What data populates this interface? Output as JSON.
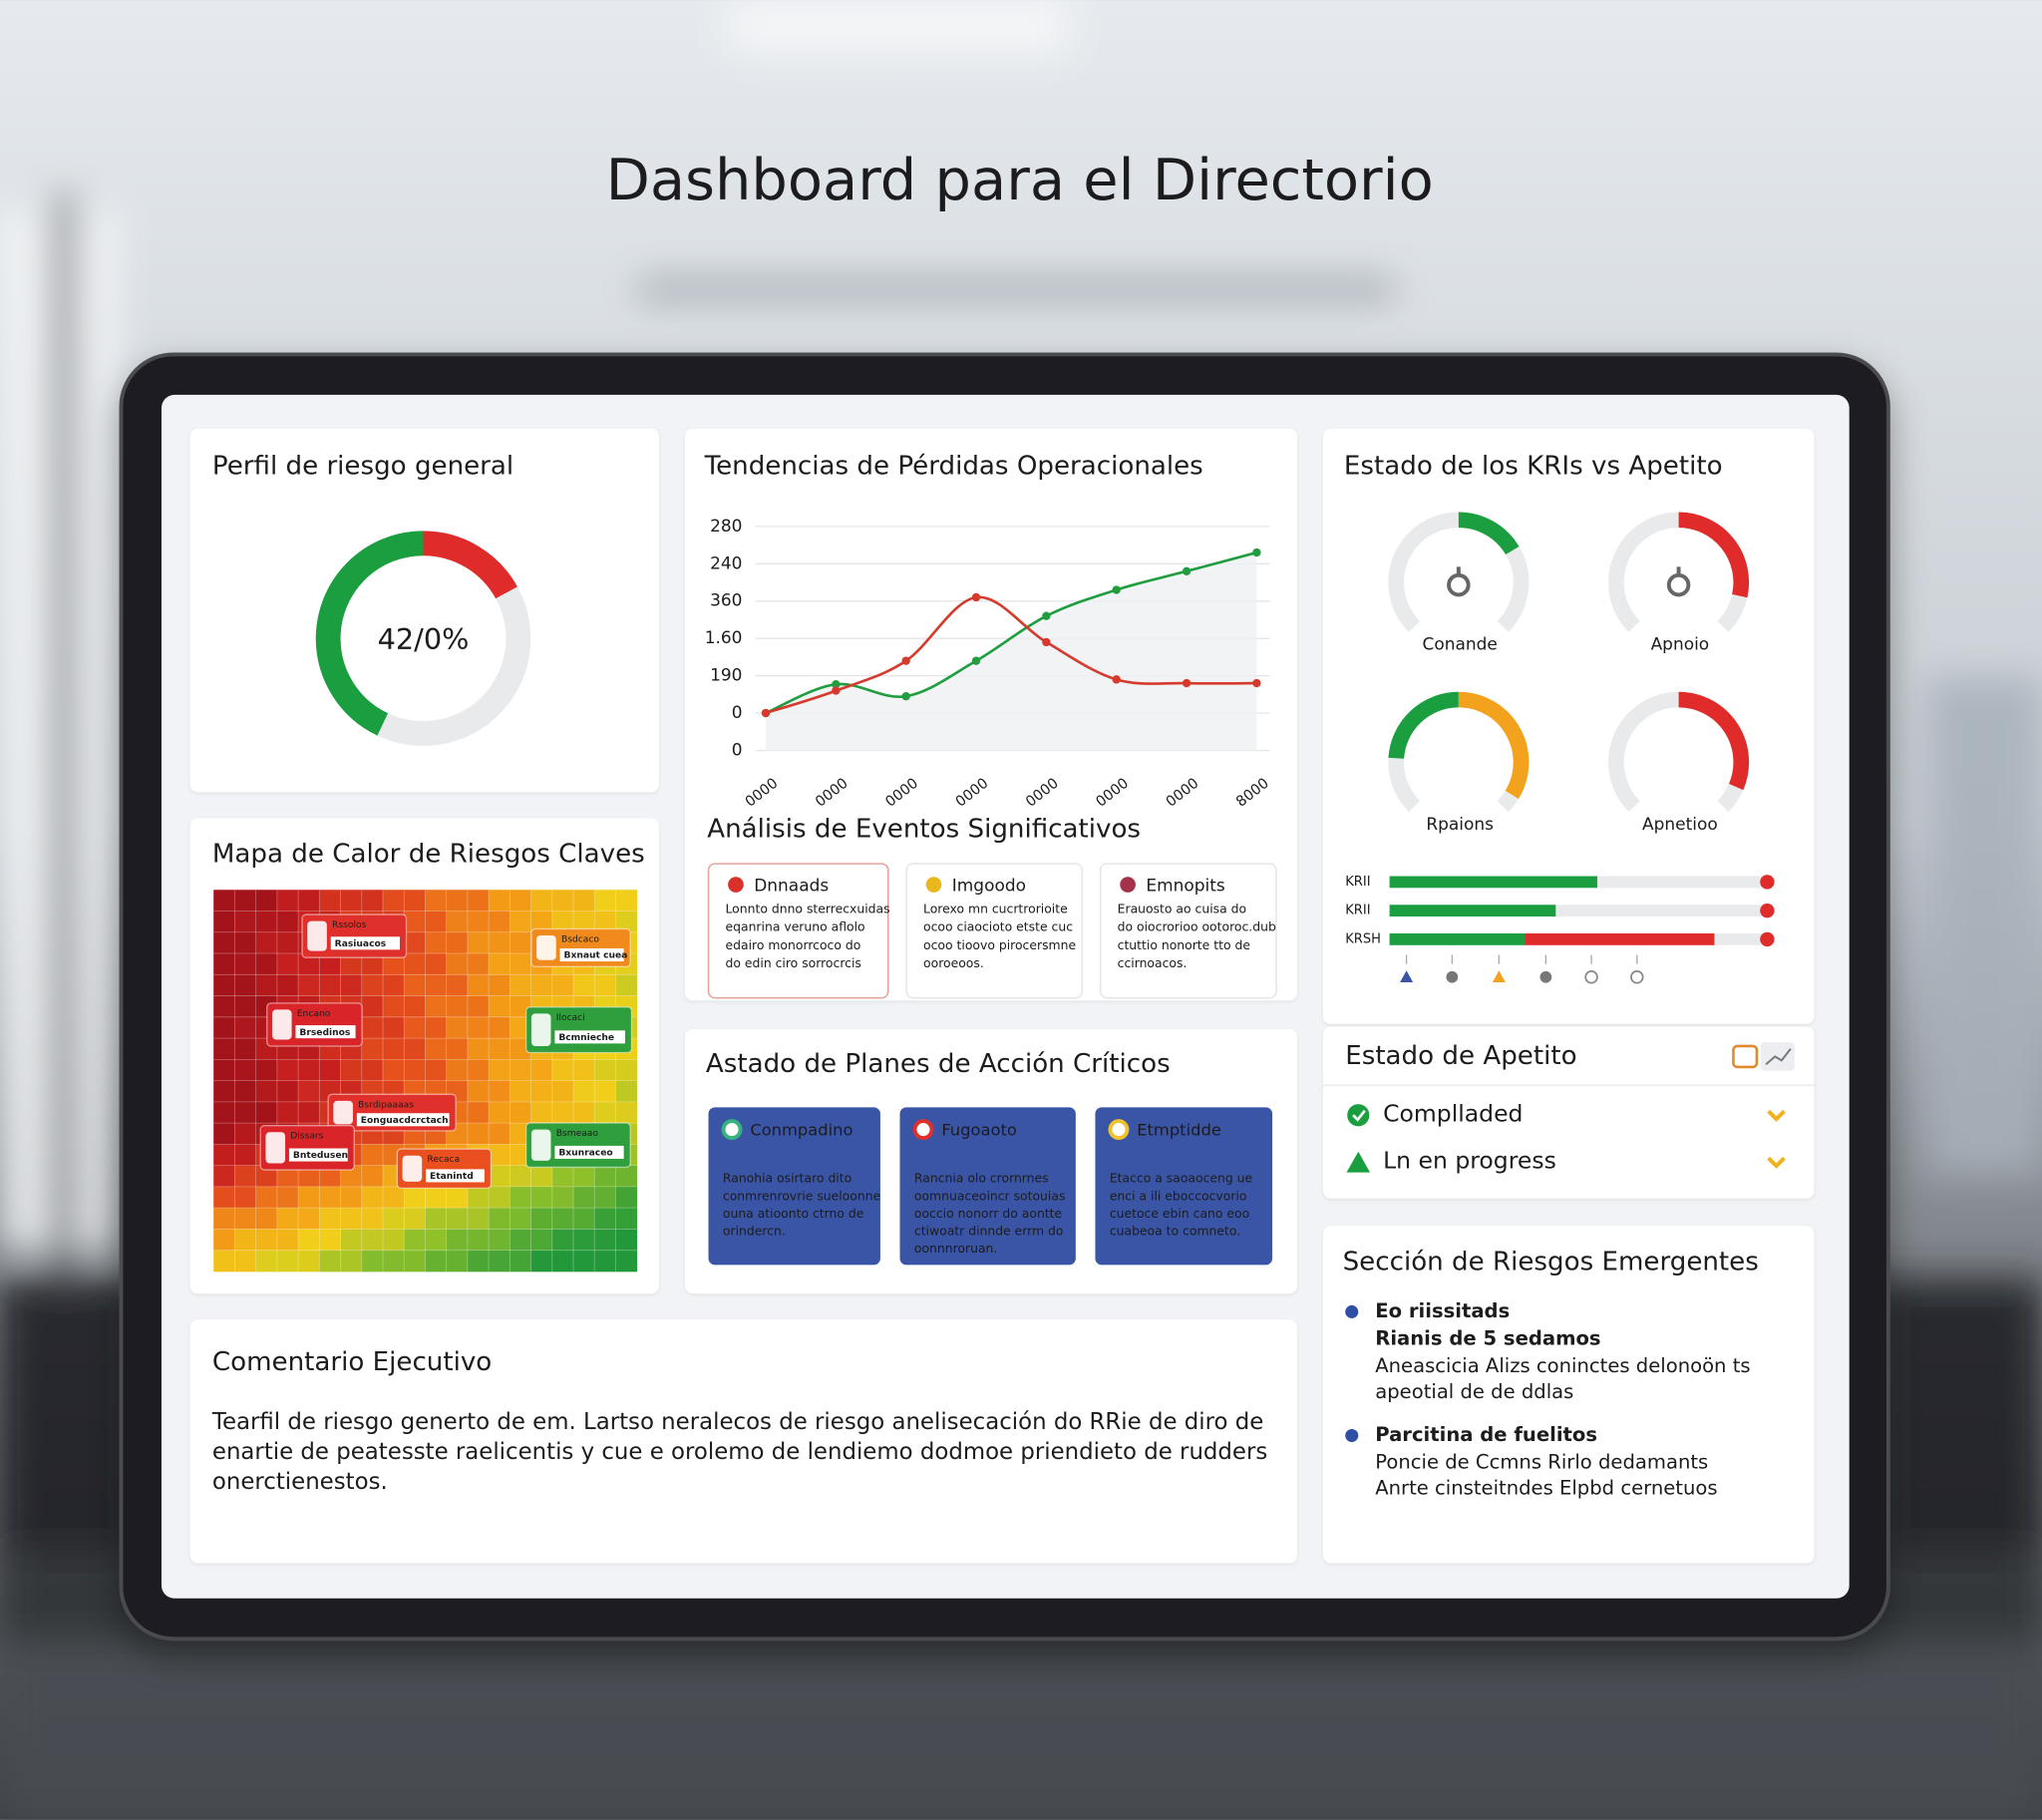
{
  "title": "Dashboard para el Directorio",
  "risk_profile": {
    "title": "Perfil de riesgo general",
    "label": "42/0%",
    "segments": [
      {
        "color": "#e02b2b",
        "value": 17
      },
      {
        "color": "#e9eaec",
        "value": 40
      },
      {
        "color": "#1a9e3f",
        "value": 43
      }
    ]
  },
  "trends": {
    "title": "Tendencias de Pérdidas Operacionales",
    "type": "line",
    "categories": [
      "0000",
      "0000",
      "0000",
      "0000",
      "0000",
      "0000",
      "0000",
      "8000"
    ],
    "ylim": [
      0,
      6
    ],
    "yticks": [
      {
        "value": 0,
        "label": "0"
      },
      {
        "value": 1,
        "label": "0"
      },
      {
        "value": 2,
        "label": "190"
      },
      {
        "value": 3,
        "label": "1.60"
      },
      {
        "value": 4,
        "label": "360"
      },
      {
        "value": 5,
        "label": "240"
      },
      {
        "value": 6,
        "label": "280"
      }
    ],
    "grid": true,
    "series": [
      {
        "color": "#1f9d3f",
        "values": [
          1,
          1.77,
          1.45,
          2.4,
          3.6,
          4.3,
          4.8,
          5.3
        ]
      },
      {
        "color": "#d63a2c",
        "values": [
          1,
          1.6,
          2.4,
          4.1,
          2.9,
          1.9,
          1.8,
          1.8
        ]
      }
    ]
  },
  "events": {
    "title": "Análisis de Eventos Significativos",
    "cards": [
      {
        "title": "Dnnaads",
        "icon_color": "#d9302b",
        "lines": [
          "Lonnto dnno sterrecxuidas",
          "eqanrina veruno aflolo",
          "edairo monorrcoco do",
          "do edin ciro sorrocrcis"
        ]
      },
      {
        "title": "Imgoodo",
        "icon_color": "#e8b81c",
        "lines": [
          "Lorexo mn cucrtrorioite",
          "ocoo ciaocioto etste cuc",
          "ocoo tioovo pirocersmne",
          "ooroeoos."
        ]
      },
      {
        "title": "Emnopits",
        "icon_color": "#a3324a",
        "lines": [
          "Erauosto ao cuisa do",
          "do oiocrorioo ootoroc.dub",
          "ctuttio nonorte tto de",
          "ccirnoacos."
        ]
      }
    ]
  },
  "heatmap": {
    "title": "Mapa de Calor de Riesgos Claves",
    "labels": [
      {
        "title": "Rssolos",
        "text": "Rasiuacos",
        "color": "#e0302b"
      },
      {
        "title": "Bsdcaco",
        "text": "Bxnaut cuea",
        "color": "#f08a1c"
      },
      {
        "title": "Encano",
        "text": "Brsedinos",
        "color": "#d9252a"
      },
      {
        "title": "Ilocaci",
        "text": "Bcmnieche",
        "color": "#2f9e3c"
      },
      {
        "title": "Bsrdipaaaas",
        "text": "Eonguacdcrctach",
        "color": "#e0302b"
      },
      {
        "title": "Dissars",
        "text": "Bntedusen",
        "color": "#d9252a"
      },
      {
        "title": "Recaca",
        "text": "Etanintd",
        "color": "#ea4f1f"
      },
      {
        "title": "Bsmeaao",
        "text": "Bxunraceo",
        "color": "#2f9e3c"
      }
    ]
  },
  "action_plans": {
    "title": "Astado de Planes de Acción Críticos",
    "cards": [
      {
        "title": "Conmpadino",
        "icon_color": "#36b37e",
        "lines": [
          "Ranohia osirtaro dito",
          "conmrenrovrie sueloonne",
          "ouna atioonto ctrno de",
          "orindercn."
        ]
      },
      {
        "title": "Fugoaoto",
        "icon_color": "#e0302b",
        "lines": [
          "Rancnia olo crornrnes",
          "oomnuaceoincr sotouias",
          "ooccio nonorr do aontte",
          "ctiwoatr dinnde errm do",
          "oonnnroruan."
        ]
      },
      {
        "title": "Etmptidde",
        "icon_color": "#f2c12e",
        "lines": [
          "Etacco a saoaoceng ue",
          "enci a ili eboccocvorio",
          "cuetoce ebin cano eoo",
          "cuabeoa to comneto."
        ]
      }
    ]
  },
  "comment": {
    "title": "Comentario Ejecutivo",
    "lines": [
      "Tearfil de riesgo generto de em. Lartso neralecos de riesgo anelisecación do RRie de diro de",
      "enartie de peatesste raelicentis y cue e orolemo de lendiemo dodmoe priendieto de rudders",
      "onerctienestos."
    ]
  },
  "kris": {
    "title": "Estado de los KRIs vs Apetito",
    "gauges": [
      {
        "label": "Conande",
        "segments": [
          {
            "color": "#e9eaec",
            "value": 50
          },
          {
            "color": "#1a9e3f",
            "value": 22
          },
          {
            "color": "#e9eaec",
            "value": 28
          }
        ]
      },
      {
        "label": "Apnoio",
        "segments": [
          {
            "color": "#e9eaec",
            "value": 50
          },
          {
            "color": "#e02b2b",
            "value": 38
          },
          {
            "color": "#e9eaec",
            "value": 12
          }
        ]
      },
      {
        "label": "Rpaions",
        "segments": [
          {
            "color": "#e9eaec",
            "value": 18
          },
          {
            "color": "#1a9e3f",
            "value": 32
          },
          {
            "color": "#f2a21c",
            "value": 45
          },
          {
            "color": "#e9eaec",
            "value": 5
          }
        ]
      },
      {
        "label": "Apnetioo",
        "segments": [
          {
            "color": "#e9eaec",
            "value": 50
          },
          {
            "color": "#e02b2b",
            "value": 42
          },
          {
            "color": "#e9eaec",
            "value": 8
          }
        ]
      }
    ],
    "bars": [
      {
        "label": "KRII",
        "segments": [
          {
            "color": "#1a9e3f",
            "value": 55
          }
        ]
      },
      {
        "label": "KRII",
        "segments": [
          {
            "color": "#1a9e3f",
            "value": 44
          }
        ]
      },
      {
        "label": "KRSH",
        "segments": [
          {
            "color": "#1a9e3f",
            "value": 36
          },
          {
            "color": "#e02b2b",
            "value": 50
          }
        ]
      }
    ]
  },
  "appetite": {
    "title": "Estado de Apetito",
    "items": [
      "Complladed",
      "Ln en progress"
    ]
  },
  "emerging": {
    "title": "Sección de Riesgos Emergentes",
    "items": [
      {
        "title": "Eo riissitads",
        "subtitle": "Rianis de 5 sedamos",
        "lines": [
          "Aneascicia Alizs coninctes delonoön ts",
          "apeotial de de ddlas"
        ]
      },
      {
        "title": "Parcitina de fuelitos",
        "lines": [
          "Poncie de Ccmns Rirlo dedamants",
          "Anrte cinsteitndes Elpbd cernetuos"
        ]
      }
    ]
  }
}
